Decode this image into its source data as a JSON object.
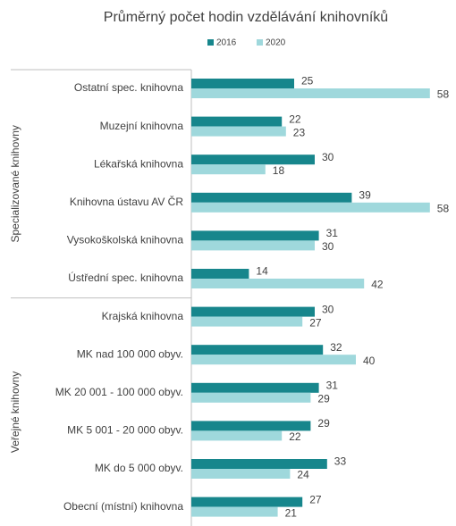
{
  "chart_data": {
    "type": "bar",
    "orientation": "horizontal",
    "title": "Průměrný počet hodin vzdělávání knihovníků",
    "categories": [
      "Ostatní spec. knihovna",
      "Muzejní knihovna",
      "Lékařská knihovna",
      "Knihovna ústavu AV ČR",
      "Vysokoškolská knihovna",
      "Ústřední spec. knihovna",
      "Krajská knihovna",
      "MK nad 100 000 obyv.",
      "MK 20 001 - 100 000 obyv.",
      "MK 5 001 - 20 000 obyv.",
      "MK do 5 000 obyv.",
      "Obecní (místní) knihovna"
    ],
    "groups": [
      {
        "name": "Specializované knihovny",
        "count": 6
      },
      {
        "name": "Veřejné knihovny",
        "count": 6
      }
    ],
    "series": [
      {
        "name": "2016",
        "color": "#17868c",
        "values": [
          25,
          22,
          30,
          39,
          31,
          14,
          30,
          32,
          31,
          29,
          33,
          27
        ]
      },
      {
        "name": "2020",
        "color": "#9fd8dc",
        "values": [
          58,
          23,
          18,
          58,
          30,
          42,
          27,
          40,
          29,
          22,
          24,
          21
        ]
      }
    ],
    "legend": "top"
  }
}
